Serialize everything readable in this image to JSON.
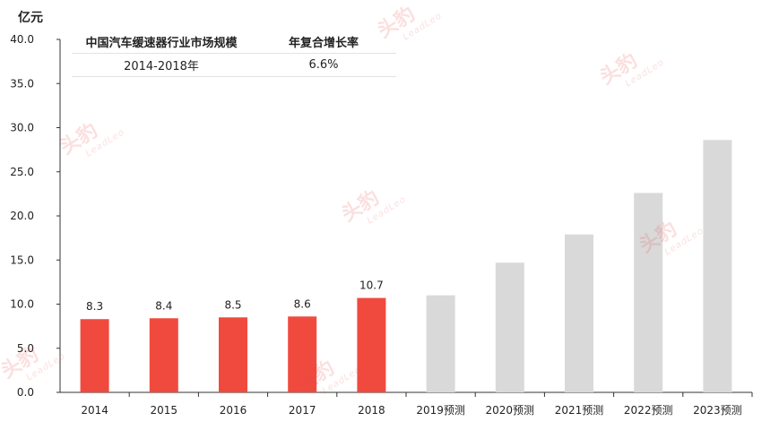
{
  "chart_data": {
    "type": "bar",
    "unit_label": "亿元",
    "categories": [
      "2014",
      "2015",
      "2016",
      "2017",
      "2018",
      "2019预测",
      "2020预测",
      "2021预测",
      "2022预测",
      "2023预测"
    ],
    "values": [
      8.3,
      8.4,
      8.5,
      8.6,
      10.7,
      11.0,
      14.7,
      17.9,
      22.6,
      28.6
    ],
    "value_labels": [
      "8.3",
      "8.4",
      "8.5",
      "8.6",
      "10.7",
      "",
      "",
      "",
      "",
      ""
    ],
    "forecast_from_index": 5,
    "ylim": [
      0,
      40
    ],
    "yticks": [
      "0.0",
      "5.0",
      "10.0",
      "15.0",
      "20.0",
      "25.0",
      "30.0",
      "35.0",
      "40.0"
    ],
    "colors": {
      "actual": "#f04a3e",
      "forecast": "#d9d9d9",
      "axis": "#333333"
    },
    "grid": false
  },
  "cagr_table": {
    "header": {
      "label": "中国汽车缓速器行业市场规模",
      "value": "年复合增长率"
    },
    "row": {
      "label": "2014-2018年",
      "value": "6.6%"
    }
  },
  "watermark": {
    "logo_text": "头豹",
    "sub_text": "LeadLeo"
  }
}
